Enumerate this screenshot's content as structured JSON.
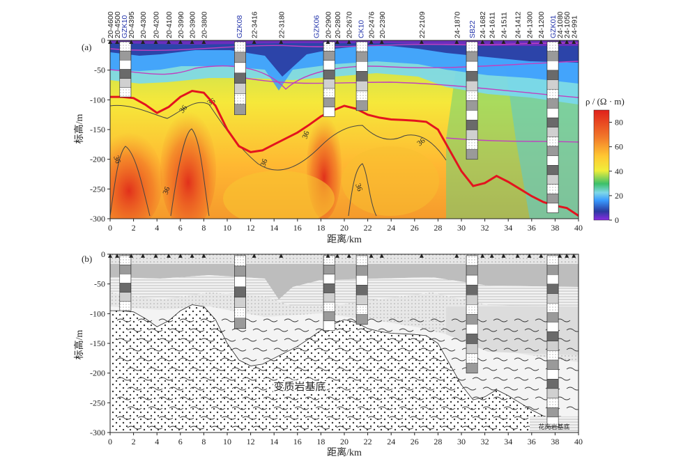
{
  "figure": {
    "panel_a_label": "(a)",
    "panel_b_label": "(b)",
    "y_axis_label": "标高/m",
    "x_axis_label": "距离/km",
    "colorbar_label": "ρ / (Ω · m)",
    "bedrock_label": "变质岩基底",
    "bedrock_label_small": "花岗岩基底"
  },
  "stations": [
    {
      "name": "20-4600",
      "km": 0.0,
      "blue": false
    },
    {
      "name": "20-4500",
      "km": 0.6,
      "blue": false
    },
    {
      "name": "GZK10",
      "km": 1.2,
      "blue": true
    },
    {
      "name": "20-4395",
      "km": 1.8,
      "blue": false
    },
    {
      "name": "20-4300",
      "km": 2.8,
      "blue": false
    },
    {
      "name": "20-4200",
      "km": 3.9,
      "blue": false
    },
    {
      "name": "20-4100",
      "km": 5.0,
      "blue": false
    },
    {
      "name": "20-3990",
      "km": 6.0,
      "blue": false
    },
    {
      "name": "20-3900",
      "km": 7.0,
      "blue": false
    },
    {
      "name": "20-3800",
      "km": 8.0,
      "blue": false
    },
    {
      "name": "GZK08",
      "km": 11.0,
      "blue": true
    },
    {
      "name": "22-3416",
      "km": 12.3,
      "blue": false
    },
    {
      "name": "22-3180",
      "km": 14.6,
      "blue": false
    },
    {
      "name": "GZK06",
      "km": 17.6,
      "blue": true
    },
    {
      "name": "20-2900",
      "km": 18.6,
      "blue": false
    },
    {
      "name": "20-2800",
      "km": 19.4,
      "blue": false
    },
    {
      "name": "20-2670",
      "km": 20.4,
      "blue": false
    },
    {
      "name": "CK10",
      "km": 21.4,
      "blue": true
    },
    {
      "name": "20-2476",
      "km": 22.3,
      "blue": false
    },
    {
      "name": "20-2390",
      "km": 23.2,
      "blue": false
    },
    {
      "name": "22-2109",
      "km": 26.6,
      "blue": false
    },
    {
      "name": "24-1870",
      "km": 29.6,
      "blue": false
    },
    {
      "name": "SB22",
      "km": 30.9,
      "blue": true
    },
    {
      "name": "24-1682",
      "km": 31.8,
      "blue": false
    },
    {
      "name": "24-1611",
      "km": 32.6,
      "blue": false
    },
    {
      "name": "24-1511",
      "km": 33.6,
      "blue": false
    },
    {
      "name": "24-1412",
      "km": 34.8,
      "blue": false
    },
    {
      "name": "24-1300",
      "km": 35.8,
      "blue": false
    },
    {
      "name": "24-1200",
      "km": 36.8,
      "blue": false
    },
    {
      "name": "GZK01",
      "km": 37.8,
      "blue": true
    },
    {
      "name": "24-1080",
      "km": 38.4,
      "blue": false
    },
    {
      "name": "24-1050",
      "km": 39.0,
      "blue": false
    },
    {
      "name": "24-991",
      "km": 39.6,
      "blue": false
    }
  ],
  "chart_data": [
    {
      "type": "heatmap",
      "title": "",
      "xlabel": "距离/km",
      "ylabel": "标高/m",
      "xlim": [
        0,
        40
      ],
      "ylim": [
        -300,
        0
      ],
      "x_ticks": [
        0,
        2,
        4,
        6,
        8,
        10,
        12,
        14,
        16,
        18,
        20,
        22,
        24,
        26,
        28,
        30,
        32,
        34,
        36,
        38,
        40
      ],
      "y_ticks": [
        0,
        -50,
        -100,
        -150,
        -200,
        -250,
        -300
      ],
      "colorbar": {
        "label": "ρ / (Ω · m)",
        "ticks": [
          0,
          20,
          40,
          60,
          80
        ],
        "range": [
          0,
          90
        ]
      },
      "contour_label": "36",
      "bedrock_interface": {
        "x": [
          0,
          1,
          2,
          3,
          4,
          5,
          6,
          7,
          8,
          9,
          10,
          11,
          12,
          13,
          14,
          15,
          16,
          17,
          18,
          19,
          20,
          21,
          22,
          23,
          24,
          25,
          26,
          27,
          28,
          29,
          30,
          31,
          32,
          33,
          34,
          35,
          36,
          37,
          38,
          39,
          40
        ],
        "y": [
          -95,
          -95,
          -97,
          -108,
          -122,
          -112,
          -95,
          -85,
          -88,
          -110,
          -150,
          -178,
          -188,
          -185,
          -175,
          -165,
          -155,
          -142,
          -128,
          -118,
          -110,
          -115,
          -125,
          -130,
          -133,
          -134,
          -135,
          -137,
          -150,
          -185,
          -220,
          -245,
          -240,
          -228,
          -238,
          -250,
          -262,
          -272,
          -278,
          -282,
          -295
        ]
      },
      "boreholes": [
        {
          "name": "GZK10",
          "x": 1.3,
          "bottom": -95
        },
        {
          "name": "GZK08",
          "x": 11.1,
          "bottom": -125
        },
        {
          "name": "GZK06",
          "x": 18.7,
          "bottom": -128
        },
        {
          "name": "CK10",
          "x": 21.5,
          "bottom": -118
        },
        {
          "name": "SB22",
          "x": 30.9,
          "bottom": -200
        },
        {
          "name": "GZK01",
          "x": 37.8,
          "bottom": -290
        }
      ]
    },
    {
      "type": "area",
      "title": "",
      "xlabel": "距离/km",
      "ylabel": "标高/m",
      "xlim": [
        0,
        40
      ],
      "ylim": [
        -300,
        0
      ],
      "x_ticks": [
        0,
        2,
        4,
        6,
        8,
        10,
        12,
        14,
        16,
        18,
        20,
        22,
        24,
        26,
        28,
        30,
        32,
        34,
        36,
        38,
        40
      ],
      "y_ticks": [
        0,
        -50,
        -100,
        -150,
        -200,
        -250,
        -300
      ],
      "units": [
        "变质岩基底",
        "花岗岩基底"
      ]
    }
  ],
  "colors": {
    "interface_red": "#e3141e",
    "layer_magenta": "#c040c0",
    "station_blue": "#2233aa",
    "contour_grey": "#444444",
    "cap_grey": "#bdbdbd",
    "mid_grey": "#d8d8d8",
    "light_grey": "#eeeeee"
  }
}
